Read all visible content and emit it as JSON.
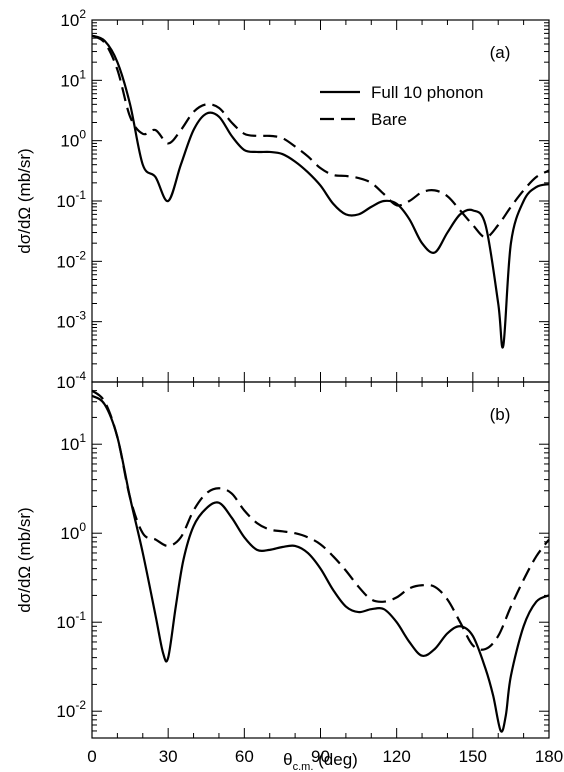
{
  "chart_data": [
    {
      "panel": "(a)",
      "type": "line",
      "ylabel": "dσ/dΩ (mb/sr)",
      "ylog": true,
      "ylim": [
        0.0001,
        100
      ],
      "xlim": [
        0,
        180
      ],
      "yticks": [
        {
          "value": 0.0001,
          "base": "10",
          "exp": "-4"
        },
        {
          "value": 0.001,
          "base": "10",
          "exp": "-3"
        },
        {
          "value": 0.01,
          "base": "10",
          "exp": "-2"
        },
        {
          "value": 0.1,
          "base": "10",
          "exp": "-1"
        },
        {
          "value": 1,
          "base": "10",
          "exp": "0"
        },
        {
          "value": 10,
          "base": "10",
          "exp": "1"
        },
        {
          "value": 100,
          "base": "10",
          "exp": "2"
        }
      ],
      "legend_position": "top-right",
      "series": [
        {
          "name": "Full 10 phonon",
          "style": "solid",
          "x": [
            0,
            5,
            10,
            15,
            20,
            25,
            30,
            35,
            40,
            45,
            50,
            55,
            60,
            65,
            70,
            75,
            80,
            85,
            90,
            95,
            100,
            105,
            110,
            115,
            120,
            125,
            130,
            135,
            140,
            145,
            150,
            155,
            160,
            162,
            165,
            170,
            175,
            180
          ],
          "y": [
            55,
            45,
            20,
            4,
            0.4,
            0.25,
            0.1,
            0.4,
            1.5,
            2.8,
            2.5,
            1.2,
            0.7,
            0.65,
            0.65,
            0.6,
            0.45,
            0.3,
            0.18,
            0.09,
            0.06,
            0.06,
            0.08,
            0.1,
            0.09,
            0.05,
            0.02,
            0.014,
            0.03,
            0.06,
            0.07,
            0.04,
            0.002,
            0.0004,
            0.02,
            0.1,
            0.17,
            0.19
          ]
        },
        {
          "name": "Bare",
          "style": "dashed",
          "x": [
            0,
            5,
            10,
            15,
            20,
            25,
            30,
            35,
            40,
            45,
            50,
            55,
            60,
            65,
            70,
            75,
            80,
            85,
            90,
            95,
            100,
            105,
            110,
            115,
            120,
            125,
            130,
            135,
            140,
            145,
            150,
            155,
            160,
            165,
            170,
            175,
            180
          ],
          "y": [
            55,
            42,
            15,
            2.5,
            1.3,
            1.5,
            0.9,
            1.5,
            3.0,
            4.0,
            3.5,
            2.0,
            1.3,
            1.2,
            1.2,
            1.1,
            0.8,
            0.55,
            0.35,
            0.27,
            0.26,
            0.24,
            0.2,
            0.13,
            0.085,
            0.1,
            0.14,
            0.15,
            0.12,
            0.07,
            0.04,
            0.025,
            0.04,
            0.08,
            0.15,
            0.25,
            0.32
          ]
        }
      ]
    },
    {
      "panel": "(b)",
      "type": "line",
      "ylabel": "dσ/dΩ (mb/sr)",
      "xlabel_main": "θ",
      "xlabel_sub": "c.m.",
      "xlabel_rest": " (deg)",
      "ylog": true,
      "ylim": [
        0.005,
        50
      ],
      "xlim": [
        0,
        180
      ],
      "xticks": [
        0,
        30,
        60,
        90,
        120,
        150,
        180
      ],
      "yticks": [
        {
          "value": 0.01,
          "base": "10",
          "exp": "-2"
        },
        {
          "value": 0.1,
          "base": "10",
          "exp": "-1"
        },
        {
          "value": 1,
          "base": "10",
          "exp": "0"
        },
        {
          "value": 10,
          "base": "10",
          "exp": "1"
        }
      ],
      "series": [
        {
          "name": "Full 10 phonon",
          "style": "solid",
          "x": [
            0,
            5,
            10,
            15,
            20,
            25,
            28,
            30,
            33,
            36,
            40,
            45,
            50,
            55,
            60,
            65,
            70,
            75,
            80,
            85,
            90,
            95,
            100,
            105,
            110,
            115,
            120,
            125,
            130,
            135,
            140,
            145,
            150,
            155,
            158,
            161,
            163,
            165,
            170,
            175,
            180
          ],
          "y": [
            35,
            28,
            12,
            2.5,
            0.6,
            0.12,
            0.045,
            0.04,
            0.15,
            0.5,
            1.2,
            1.9,
            2.2,
            1.5,
            0.9,
            0.65,
            0.65,
            0.7,
            0.72,
            0.6,
            0.4,
            0.23,
            0.15,
            0.13,
            0.14,
            0.14,
            0.1,
            0.06,
            0.042,
            0.05,
            0.075,
            0.09,
            0.07,
            0.03,
            0.015,
            0.006,
            0.009,
            0.025,
            0.09,
            0.17,
            0.2
          ]
        },
        {
          "name": "Bare",
          "style": "dashed",
          "x": [
            0,
            5,
            10,
            15,
            20,
            25,
            30,
            35,
            40,
            45,
            50,
            55,
            60,
            65,
            70,
            75,
            80,
            85,
            90,
            95,
            100,
            105,
            110,
            115,
            120,
            125,
            130,
            135,
            140,
            145,
            150,
            155,
            160,
            165,
            170,
            175,
            180
          ],
          "y": [
            40,
            30,
            12,
            2.5,
            1.0,
            0.85,
            0.72,
            0.9,
            1.8,
            2.8,
            3.2,
            2.8,
            1.8,
            1.3,
            1.1,
            1.05,
            1.0,
            0.9,
            0.75,
            0.55,
            0.38,
            0.25,
            0.18,
            0.17,
            0.19,
            0.24,
            0.26,
            0.25,
            0.18,
            0.1,
            0.055,
            0.05,
            0.07,
            0.15,
            0.3,
            0.55,
            0.85
          ]
        }
      ]
    }
  ]
}
